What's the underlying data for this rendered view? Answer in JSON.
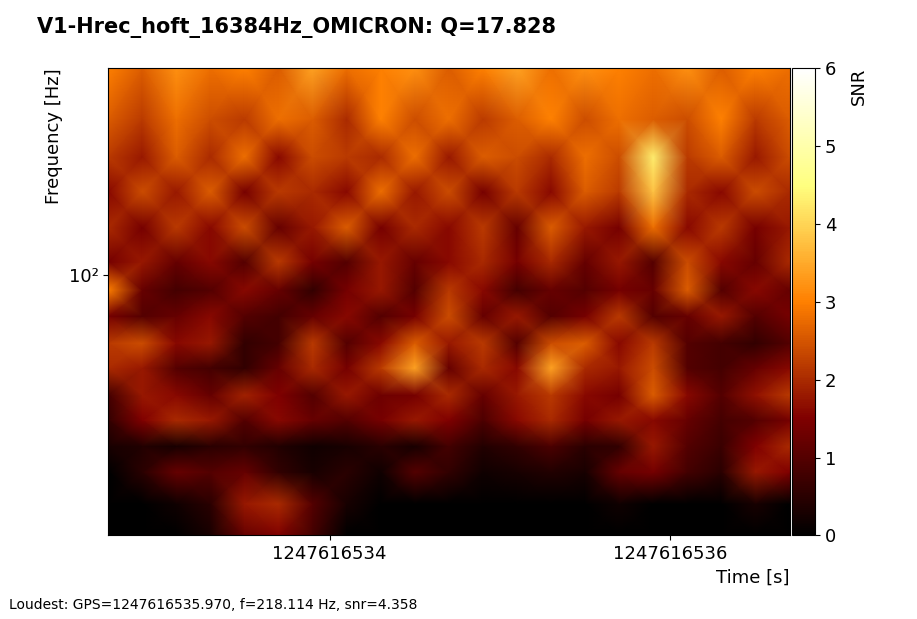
{
  "chart_data": {
    "type": "heatmap",
    "title": "V1-Hrec_hoft_16384Hz_OMICRON: Q=17.828",
    "x_label": "Time [s]",
    "y_label": "Frequency [Hz]",
    "annotation": "Loudest: GPS=1247616535.970, f=218.114 Hz, snr=4.358",
    "log": "y",
    "xlim": [
      1247616532.7,
      1247616536.7
    ],
    "ylim": [
      16,
      430
    ],
    "xticks": [
      1247616534,
      1247616536
    ],
    "yticks": [
      {
        "value": 100,
        "label": "10²"
      }
    ],
    "x": [
      1247616532.7,
      1247616532.9,
      1247616533.1,
      1247616533.3,
      1247616533.5,
      1247616533.7,
      1247616533.9,
      1247616534.1,
      1247616534.3,
      1247616534.5,
      1247616534.7,
      1247616534.9,
      1247616535.1,
      1247616535.3,
      1247616535.5,
      1247616535.7,
      1247616535.9,
      1247616536.1,
      1247616536.3,
      1247616536.5,
      1247616536.7
    ],
    "y": [
      16,
      20,
      25,
      30,
      36,
      43,
      52,
      62,
      75,
      90,
      110,
      140,
      180,
      230,
      300,
      430
    ],
    "cells": [
      [
        0,
        0,
        0,
        0.3,
        1.2,
        1.5,
        0.8,
        0,
        0,
        0,
        0,
        0,
        0,
        0,
        0,
        0,
        0,
        0,
        0,
        0,
        0
      ],
      [
        0,
        0,
        0.2,
        0.5,
        1.8,
        2.0,
        1.0,
        0.3,
        0,
        0,
        0,
        0,
        0,
        0,
        0,
        0.2,
        0,
        0,
        0,
        0.3,
        0
      ],
      [
        0,
        0.5,
        1.2,
        1.0,
        1.2,
        0.6,
        0.3,
        0.5,
        0.2,
        1.0,
        0.6,
        0.2,
        0.3,
        0.4,
        0.3,
        1.2,
        1.4,
        0.8,
        0.5,
        1.8,
        1.5
      ],
      [
        0.3,
        0.4,
        0.3,
        0.5,
        0.6,
        0.4,
        0.2,
        0.3,
        0.5,
        0.3,
        0.8,
        0.4,
        0.6,
        0.9,
        0.5,
        0.6,
        1.8,
        1.0,
        0.7,
        1.5,
        2.0
      ],
      [
        0.6,
        1.5,
        2.0,
        1.8,
        1.0,
        1.6,
        1.2,
        1.0,
        1.4,
        1.8,
        1.5,
        0.9,
        1.6,
        2.0,
        1.4,
        1.8,
        1.6,
        1.2,
        0.8,
        1.0,
        1.4
      ],
      [
        0.8,
        1.8,
        1.6,
        1.2,
        1.9,
        1.5,
        1.0,
        1.8,
        1.3,
        1.4,
        2.0,
        1.2,
        1.8,
        2.2,
        1.6,
        1.4,
        2.6,
        1.6,
        1.0,
        1.7,
        2.2
      ],
      [
        2.0,
        1.8,
        1.0,
        0.8,
        0.6,
        1.2,
        2.0,
        1.4,
        2.2,
        3.4,
        1.2,
        2.0,
        1.6,
        3.4,
        2.0,
        1.8,
        2.4,
        1.0,
        0.8,
        1.2,
        1.6
      ],
      [
        2.2,
        2.4,
        1.6,
        1.8,
        0.6,
        0.8,
        2.2,
        1.0,
        1.6,
        2.6,
        1.8,
        2.2,
        1.0,
        2.4,
        2.6,
        1.6,
        2.2,
        1.0,
        0.8,
        0.6,
        1.0
      ],
      [
        1.4,
        1.0,
        1.2,
        1.6,
        1.0,
        0.8,
        1.2,
        1.6,
        1.0,
        1.4,
        2.4,
        1.2,
        1.8,
        1.0,
        1.4,
        2.2,
        1.0,
        1.2,
        1.8,
        1.0,
        1.4
      ],
      [
        3.0,
        1.2,
        0.8,
        1.0,
        1.6,
        1.2,
        0.6,
        1.4,
        1.8,
        1.0,
        2.2,
        1.6,
        0.8,
        1.2,
        1.0,
        1.4,
        1.2,
        2.6,
        1.0,
        1.6,
        1.2
      ],
      [
        1.4,
        1.8,
        1.2,
        1.6,
        1.0,
        2.2,
        1.4,
        1.0,
        1.8,
        1.2,
        1.6,
        2.0,
        1.4,
        2.0,
        1.2,
        1.8,
        1.0,
        2.4,
        1.6,
        1.2,
        2.0
      ],
      [
        2.0,
        1.4,
        2.2,
        1.6,
        2.4,
        1.2,
        1.8,
        2.6,
        1.4,
        2.0,
        1.6,
        2.2,
        1.2,
        2.6,
        1.8,
        1.4,
        2.8,
        1.6,
        2.2,
        1.4,
        1.8
      ],
      [
        1.6,
        2.4,
        1.8,
        2.6,
        1.4,
        2.2,
        2.0,
        1.6,
        2.8,
        1.8,
        2.4,
        1.4,
        2.2,
        1.6,
        2.6,
        2.2,
        3.8,
        2.0,
        1.6,
        2.4,
        2.0
      ],
      [
        2.2,
        1.8,
        2.6,
        2.0,
        2.8,
        1.6,
        2.4,
        2.2,
        2.0,
        2.8,
        1.8,
        2.6,
        2.4,
        2.0,
        2.8,
        2.4,
        4.3,
        2.2,
        2.6,
        1.8,
        2.4
      ],
      [
        2.6,
        2.2,
        2.8,
        2.4,
        2.2,
        2.8,
        2.6,
        2.0,
        3.0,
        2.4,
        2.8,
        2.2,
        2.6,
        3.0,
        2.4,
        2.8,
        2.6,
        2.4,
        3.0,
        2.2,
        2.6
      ],
      [
        3.0,
        2.6,
        3.2,
        2.8,
        3.0,
        2.6,
        3.4,
        2.8,
        3.0,
        3.2,
        2.6,
        3.0,
        3.4,
        2.8,
        3.2,
        3.0,
        2.8,
        3.2,
        2.6,
        3.0,
        2.8
      ]
    ],
    "colorbar": {
      "label": "SNR",
      "range": [
        0,
        6
      ],
      "ticks": [
        0,
        1,
        2,
        3,
        4,
        5,
        6
      ]
    }
  }
}
